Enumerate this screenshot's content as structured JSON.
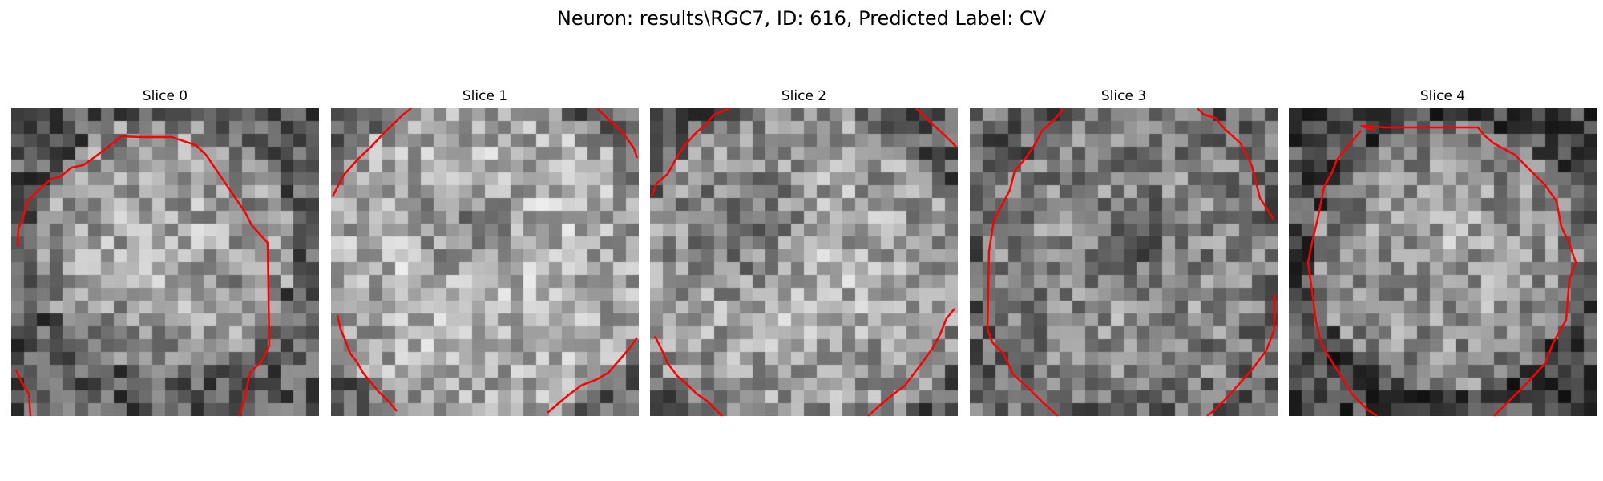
{
  "title": "Neuron: results\\RGC7, ID: 616, Predicted Label: CV",
  "contour_color": "#ff0000",
  "colormap": "gray",
  "panels": [
    {
      "title": "Slice 0",
      "name": "slice-0"
    },
    {
      "title": "Slice 1",
      "name": "slice-1"
    },
    {
      "title": "Slice 2",
      "name": "slice-2"
    },
    {
      "title": "Slice 3",
      "name": "slice-3"
    },
    {
      "title": "Slice 4",
      "name": "slice-4"
    }
  ]
}
